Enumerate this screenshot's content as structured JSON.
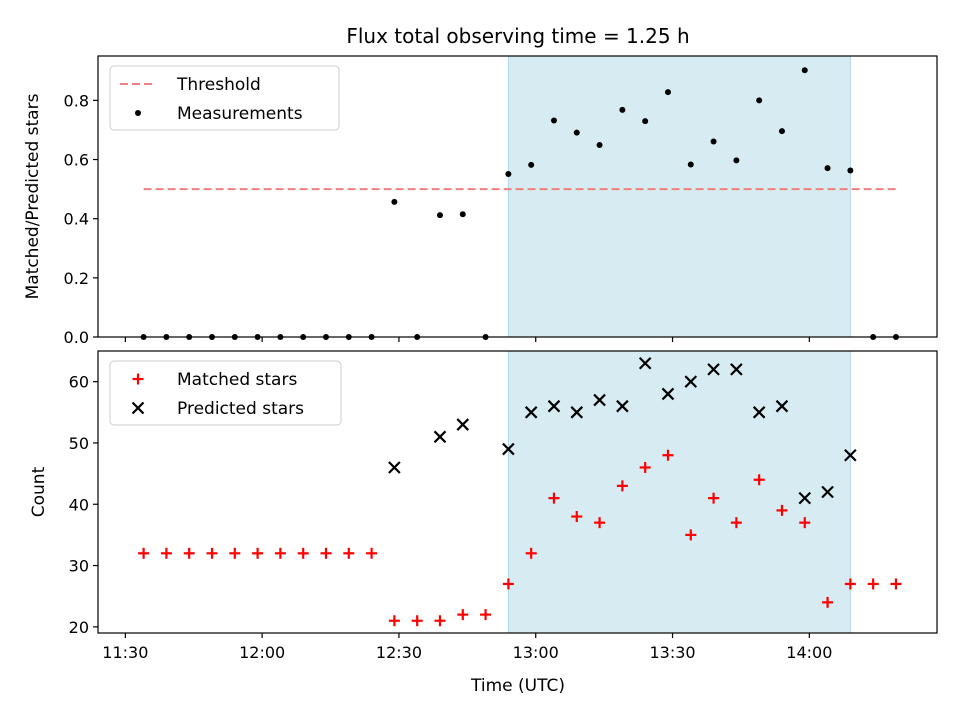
{
  "figure": {
    "title": "Flux total observing time = 1.25 h",
    "xlabel": "Time (UTC)",
    "x_ticks": [
      "11:30",
      "12:00",
      "12:30",
      "13:00",
      "13:30",
      "14:00"
    ]
  },
  "chart_data": [
    {
      "type": "scatter",
      "panel": "top",
      "ylabel": "Matched/Predicted stars",
      "ylim": [
        0,
        0.95
      ],
      "y_ticks": [
        "0.0",
        "0.2",
        "0.4",
        "0.6",
        "0.8"
      ],
      "xlim": [
        "11:24",
        "14:28"
      ],
      "grid": false,
      "legend_position": "upper-left",
      "highlight_span": {
        "from": "12:54",
        "to": "14:09",
        "color": "#add8e6"
      },
      "threshold": {
        "name": "Threshold",
        "value": 0.5,
        "from": "11:34",
        "to": "14:19",
        "color": "#f08080",
        "style": "dashed"
      },
      "series": [
        {
          "name": "Measurements",
          "marker": "dot",
          "color": "#000000",
          "x": [
            "11:34",
            "11:39",
            "11:44",
            "11:49",
            "11:54",
            "11:59",
            "12:04",
            "12:09",
            "12:14",
            "12:19",
            "12:24",
            "12:29",
            "12:34",
            "12:39",
            "12:44",
            "12:49",
            "12:54",
            "12:59",
            "13:04",
            "13:09",
            "13:14",
            "13:19",
            "13:24",
            "13:29",
            "13:34",
            "13:39",
            "13:44",
            "13:49",
            "13:54",
            "13:59",
            "14:04",
            "14:09",
            "14:14",
            "14:19"
          ],
          "y": [
            0,
            0,
            0,
            0,
            0,
            0,
            0,
            0,
            0,
            0,
            0,
            0.457,
            0,
            0.412,
            0.415,
            0,
            0.551,
            0.582,
            0.732,
            0.691,
            0.649,
            0.768,
            0.73,
            0.828,
            0.583,
            0.661,
            0.597,
            0.8,
            0.696,
            0.902,
            0.571,
            0.563,
            0,
            0
          ]
        }
      ]
    },
    {
      "type": "scatter",
      "panel": "bottom",
      "ylabel": "Count",
      "ylim": [
        19,
        65
      ],
      "y_ticks": [
        "20",
        "30",
        "40",
        "50",
        "60"
      ],
      "xlim": [
        "11:24",
        "14:28"
      ],
      "grid": false,
      "legend_position": "upper-left",
      "highlight_span": {
        "from": "12:54",
        "to": "14:09",
        "color": "#add8e6"
      },
      "series": [
        {
          "name": "Matched stars",
          "marker": "plus",
          "color": "#ff0000",
          "x": [
            "11:34",
            "11:39",
            "11:44",
            "11:49",
            "11:54",
            "11:59",
            "12:04",
            "12:09",
            "12:14",
            "12:19",
            "12:24",
            "12:29",
            "12:34",
            "12:39",
            "12:44",
            "12:49",
            "12:54",
            "12:59",
            "13:04",
            "13:09",
            "13:14",
            "13:19",
            "13:24",
            "13:29",
            "13:34",
            "13:39",
            "13:44",
            "13:49",
            "13:54",
            "13:59",
            "14:04",
            "14:09",
            "14:14",
            "14:19"
          ],
          "y": [
            32,
            32,
            32,
            32,
            32,
            32,
            32,
            32,
            32,
            32,
            32,
            21,
            21,
            21,
            22,
            22,
            27,
            32,
            41,
            38,
            37,
            43,
            46,
            48,
            35,
            41,
            37,
            44,
            39,
            37,
            24,
            27,
            27,
            27
          ]
        },
        {
          "name": "Predicted stars",
          "marker": "x",
          "color": "#000000",
          "x": [
            "12:29",
            "12:39",
            "12:44",
            "12:54",
            "12:59",
            "13:04",
            "13:09",
            "13:14",
            "13:19",
            "13:24",
            "13:29",
            "13:34",
            "13:39",
            "13:44",
            "13:49",
            "13:54",
            "13:59",
            "14:04",
            "14:09"
          ],
          "y": [
            46,
            51,
            53,
            49,
            55,
            56,
            55,
            57,
            56,
            63,
            58,
            60,
            62,
            62,
            55,
            56,
            41,
            42,
            48
          ]
        }
      ]
    }
  ]
}
